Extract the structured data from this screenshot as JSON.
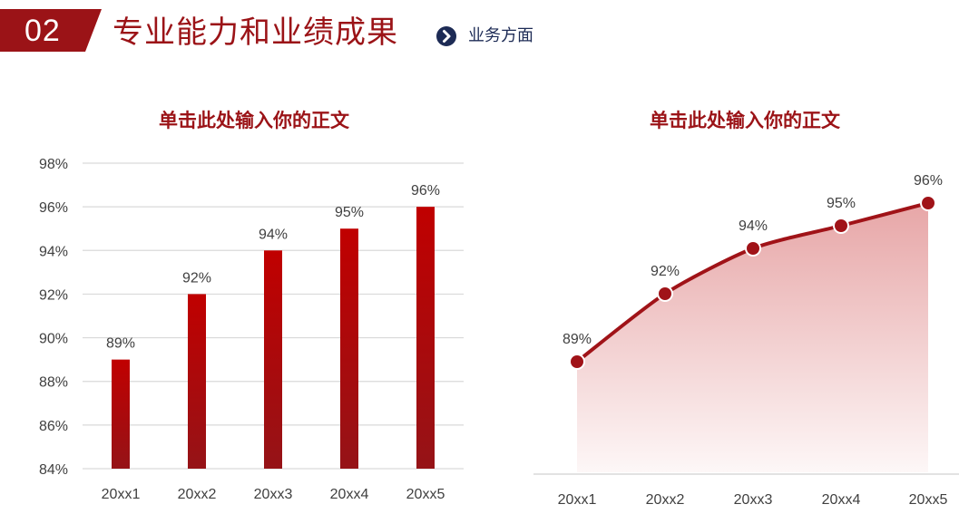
{
  "header": {
    "section_number": "02",
    "title": "专业能力和业绩成果",
    "subtitle": "业务方面",
    "accent_color": "#9b1317",
    "subtitle_color": "#1d2b55",
    "arrow_icon": "chevron-right-circle-icon"
  },
  "left_chart": {
    "title": "单击此处输入你的正文"
  },
  "right_chart": {
    "title": "单击此处输入你的正文"
  },
  "chart_data": [
    {
      "type": "bar",
      "title": "单击此处输入你的正文",
      "categories": [
        "20xx1",
        "20xx2",
        "20xx3",
        "20xx4",
        "20xx5"
      ],
      "values": [
        89,
        92,
        94,
        95,
        96
      ],
      "data_labels": [
        "89%",
        "92%",
        "94%",
        "95%",
        "96%"
      ],
      "xlabel": "",
      "ylabel": "",
      "ylim": [
        84,
        98
      ],
      "yticks": [
        "84%",
        "86%",
        "88%",
        "90%",
        "92%",
        "94%",
        "96%",
        "98%"
      ],
      "grid": true,
      "legend": "none",
      "bar_color_top": "#c00000",
      "bar_color_bottom": "#961316"
    },
    {
      "type": "area",
      "title": "单击此处输入你的正文",
      "categories": [
        "20xx1",
        "20xx2",
        "20xx3",
        "20xx4",
        "20xx5"
      ],
      "values": [
        89,
        92,
        94,
        95,
        96
      ],
      "data_labels": [
        "89%",
        "92%",
        "94%",
        "95%",
        "96%"
      ],
      "xlabel": "",
      "ylabel": "",
      "y_axis_visible": false,
      "grid": false,
      "legend": "none",
      "line_color": "#a01318",
      "fill_color_top": "#e7a6a7",
      "fill_color_bottom": "#fdf5f5",
      "markers": true
    }
  ]
}
